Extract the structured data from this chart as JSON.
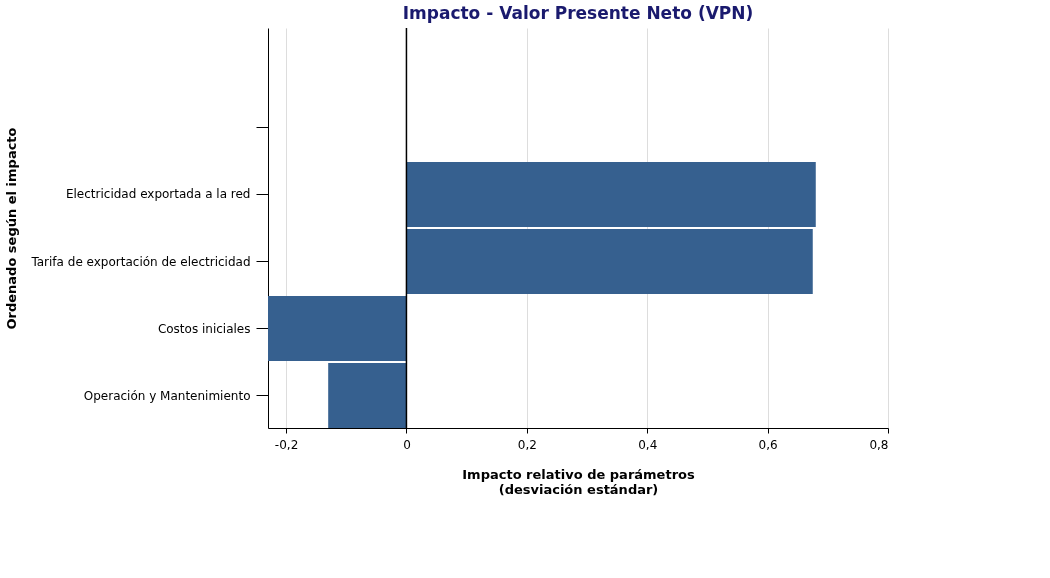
{
  "chart_data": {
    "type": "bar",
    "orientation": "horizontal",
    "title": "Impacto - Valor Presente Neto (VPN)",
    "xlabel": "Impacto relativo de parámetros\n(desviación estándar)",
    "ylabel": "Ordenado según el impacto",
    "categories": [
      null,
      null,
      "Electricidad exportada a la red",
      "Tarifa de exportación de electricidad",
      "Costos iniciales",
      "Operación y Mantenimiento"
    ],
    "values": [
      null,
      null,
      0.68,
      0.675,
      -0.23,
      -0.13
    ],
    "color": "#36608f",
    "xlim": [
      -0.23,
      0.8
    ],
    "xticks": [
      {
        "value": -0.2,
        "label": "-0,2"
      },
      0,
      {
        "value": 0.2,
        "label": "0,2"
      },
      {
        "value": 0.4,
        "label": "0,4"
      },
      {
        "value": 0.6,
        "label": "0,6"
      },
      {
        "value": 0.8,
        "label": "0,8"
      }
    ],
    "ref_lines": [
      {
        "axis": "x",
        "value": 0,
        "color": "#000000"
      }
    ],
    "grid": "x"
  }
}
